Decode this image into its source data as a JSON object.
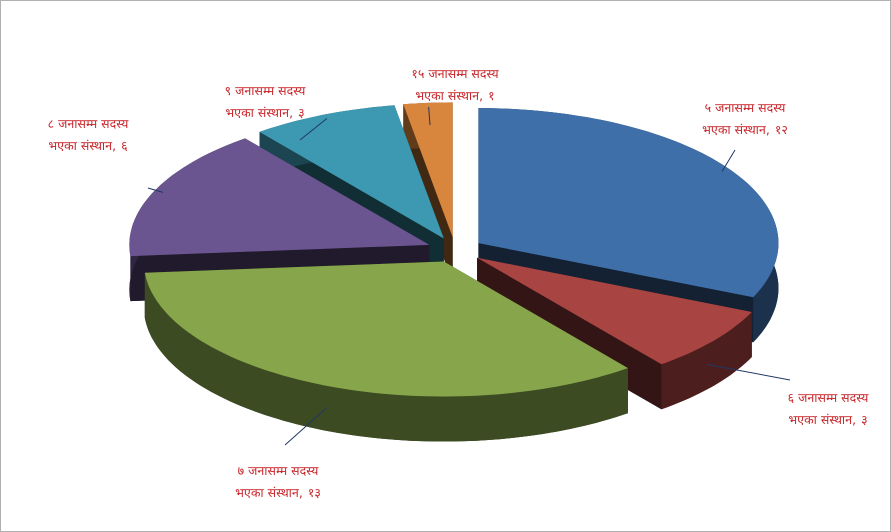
{
  "chart_data": {
    "type": "pie3d",
    "categories": [
      [
        "५ जनासम्म सदस्य",
        "भएका संस्थान,"
      ],
      [
        "६ जनासम्म सदस्य",
        "भएका संस्थान,"
      ],
      [
        "७ जनासम्म सदस्य",
        "भएका संस्थान,"
      ],
      [
        "८ जनासम्म सदस्य",
        "भएका संस्थान,"
      ],
      [
        "९ जनासम्म सदस्य",
        "भएका संस्थान,"
      ],
      [
        "१५ जनासम्म सदस्य",
        "भएका संस्थान,"
      ]
    ],
    "values": [
      12,
      3,
      13,
      6,
      3,
      1
    ],
    "value_labels": [
      "१२",
      "३",
      "१३",
      "६",
      "३",
      "१"
    ],
    "colors": [
      "#3f6fa9",
      "#a84543",
      "#87a64b",
      "#6b5591",
      "#3d99b1",
      "#d8853d"
    ]
  }
}
